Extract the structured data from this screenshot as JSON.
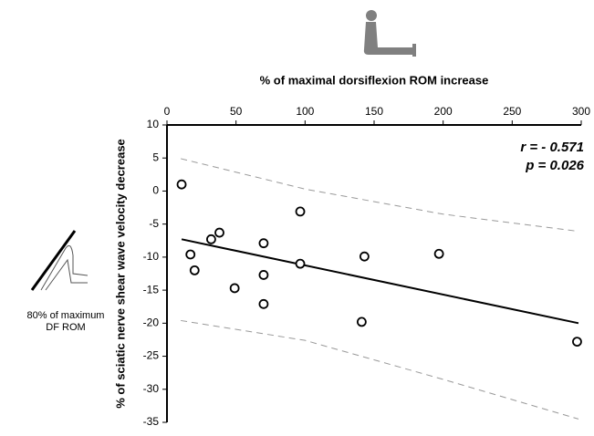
{
  "chart_data": {
    "type": "scatter",
    "x_label": "% of maximal dorsiflexion ROM increase",
    "y_label": "% of sciatic nerve shear wave velocity decrease",
    "annotations": [
      "r = - 0.571",
      "p = 0.026"
    ],
    "side_label": [
      "80% of maximum",
      "DF ROM"
    ],
    "x": [
      10.6,
      17,
      20,
      32,
      38,
      49,
      70,
      70,
      70,
      96.5,
      96.5,
      143,
      141,
      197,
      297
    ],
    "y": [
      1.0,
      -9.6,
      -12.0,
      -7.3,
      -6.3,
      -14.7,
      -7.9,
      -12.7,
      -17.1,
      -3.1,
      -11.0,
      -9.9,
      -19.8,
      -9.5,
      -22.8
    ],
    "color": "#000000",
    "fit_line": {
      "x": [
        10.6,
        298
      ],
      "y": [
        -7.3,
        -20.0
      ],
      "color": "#000000"
    },
    "band_upper": {
      "x": [
        10,
        100,
        200,
        298
      ],
      "y": [
        4.9,
        0.3,
        -3.5,
        -6.1
      ],
      "color": "#999999"
    },
    "band_lower": {
      "x": [
        10,
        100,
        200,
        298
      ],
      "y": [
        -19.6,
        -22.6,
        -28.5,
        -34.5
      ],
      "color": "#999999"
    },
    "xlim": [
      0,
      300
    ],
    "xticks": [
      0,
      50,
      100,
      150,
      200,
      250,
      300
    ],
    "ylim": [
      -35,
      10
    ],
    "yticks": [
      10,
      5,
      0,
      -5,
      -10,
      -15,
      -20,
      -25,
      -30,
      -35
    ]
  }
}
